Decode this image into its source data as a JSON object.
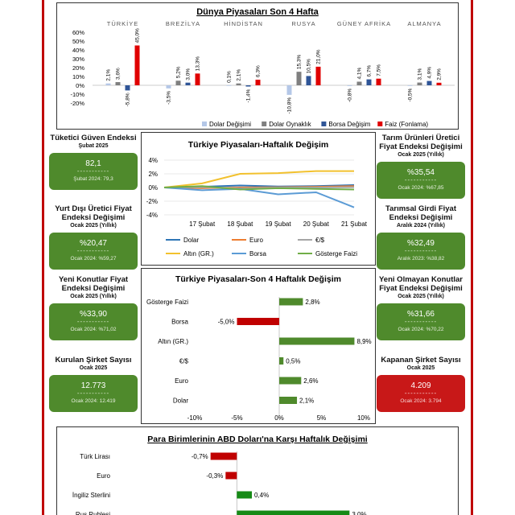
{
  "colors": {
    "frame": "#c00000",
    "kpi_green": "#4f8a2c",
    "kpi_red": "#c81818"
  },
  "kpis": [
    {
      "title": "Tüketici Güven Endeksi",
      "sub": "Şubat 2025",
      "value": "82,1",
      "dash": "-----------",
      "prev": "Şubat 2024: 79,3",
      "status": "green"
    },
    {
      "title": "Tarım Ürünleri Üretici Fiyat Endeksi Değişimi",
      "sub": "Ocak 2025 (Yıllık)",
      "value": "%35,54",
      "dash": "-----------",
      "prev": "Ocak 2024: %67,85",
      "status": "green"
    },
    {
      "title": "Yurt Dışı Üretici Fiyat Endeksi Değişimi",
      "sub": "Ocak 2025 (Yıllık)",
      "value": "%20,47",
      "dash": "-----------",
      "prev": "Ocak 2024: %59,27",
      "status": "green"
    },
    {
      "title": "Tarımsal Girdi Fiyat Endeksi Değişimi",
      "sub": "Aralık 2024 (Yıllık)",
      "value": "%32,49",
      "dash": "-----------",
      "prev": "Aralık 2023: %38,82",
      "status": "green"
    },
    {
      "title": "Yeni Konutlar Fiyat Endeksi Değişimi",
      "sub": "Ocak 2025 (Yıllık)",
      "value": "%33,90",
      "dash": "-----------",
      "prev": "Ocak 2024: %71,02",
      "status": "green"
    },
    {
      "title": "Yeni Olmayan Konutlar Fiyat Endeksi Değişimi",
      "sub": "Ocak 2025 (Yıllık)",
      "value": "%31,66",
      "dash": "-----------",
      "prev": "Ocak 2024: %70,22",
      "status": "green"
    },
    {
      "title": "Kurulan Şirket Sayısı",
      "sub": "Ocak 2025",
      "value": "12.773",
      "dash": "-----------",
      "prev": "Ocak 2024: 12.419",
      "status": "green"
    },
    {
      "title": "Kapanan Şirket Sayısı",
      "sub": "Ocak 2025",
      "value": "4.209",
      "dash": "-----------",
      "prev": "Ocak 2024: 3.794",
      "status": "red"
    }
  ],
  "chart_data": [
    {
      "type": "bar",
      "title": "Dünya Piyasaları Son 4 Hafta",
      "categories": [
        "TÜRKİYE",
        "BREZİLYA",
        "HİNDİSTAN",
        "RUSYA",
        "GÜNEY AFRİKA",
        "ALMANYA"
      ],
      "series": [
        {
          "name": "Dolar Değişimi",
          "color": "#b4c7e7",
          "values": [
            2.1,
            -3.5,
            0.1,
            -10.8,
            -0.8,
            -0.5
          ],
          "labels": [
            "2,1%",
            "-3,5%",
            "0,1%",
            "-10,8%",
            "-0,8%",
            "-0,5%"
          ]
        },
        {
          "name": "Dolar Oynaklık",
          "color": "#7f7f7f",
          "values": [
            3.6,
            5.2,
            2.1,
            15.3,
            4.1,
            3.1
          ],
          "labels": [
            "3,6%",
            "5,2%",
            "2,1%",
            "15,3%",
            "4,1%",
            "3,1%"
          ]
        },
        {
          "name": "Borsa Değişim",
          "color": "#2f5597",
          "values": [
            -5.8,
            3.0,
            -1.4,
            10.5,
            6.7,
            4.9
          ],
          "labels": [
            "-5,8%",
            "3,0%",
            "-1,4%",
            "10,5%",
            "6,7%",
            "4,9%"
          ]
        },
        {
          "name": "Faiz (Fonlama)",
          "color": "#e00000",
          "values": [
            45.0,
            13.3,
            6.3,
            21.0,
            7.5,
            2.9
          ],
          "labels": [
            "45,0%",
            "13,3%",
            "6,3%",
            "21,0%",
            "7,5%",
            "2,9%"
          ]
        }
      ],
      "yticks": [
        "60%",
        "50%",
        "40%",
        "30%",
        "20%",
        "10%",
        "0%",
        "-10%",
        "-20%"
      ],
      "ylim": [
        -20,
        60
      ],
      "legend": "bottom",
      "grid": false
    },
    {
      "type": "line",
      "title": "Türkiye Piyasaları-Haftalık Değişim",
      "x_labels": [
        "17 Şubat",
        "18 Şubat",
        "19 Şubat",
        "20 Şubat",
        "21 Şubat"
      ],
      "yticks": [
        "4%",
        "2%",
        "0%",
        "-2%",
        "-4%"
      ],
      "ylim": [
        -4,
        4
      ],
      "series": [
        {
          "name": "Dolar",
          "color": "#2e75b6",
          "values": [
            0.0,
            0.1,
            0.3,
            0.15,
            0.2,
            0.35
          ]
        },
        {
          "name": "Euro",
          "color": "#ed7d31",
          "values": [
            0.0,
            -0.1,
            0.0,
            0.05,
            0.1,
            0.2
          ]
        },
        {
          "name": "€/$",
          "color": "#a5a5a5",
          "values": [
            0.0,
            0.05,
            -0.15,
            0.0,
            0.0,
            0.05
          ]
        },
        {
          "name": "Altın (GR.)",
          "color": "#f2c12e",
          "values": [
            0.0,
            0.6,
            2.0,
            2.1,
            2.4,
            2.4
          ]
        },
        {
          "name": "Borsa",
          "color": "#5b9bd5",
          "values": [
            0.0,
            -0.4,
            -0.2,
            -1.0,
            -0.7,
            -2.9
          ]
        },
        {
          "name": "Gösterge Faizi",
          "color": "#70ad47",
          "values": [
            0.0,
            0.2,
            -0.3,
            -0.1,
            -0.2,
            -0.3
          ]
        }
      ],
      "legend": "bottom",
      "grid": true
    },
    {
      "type": "bar",
      "orientation": "horizontal",
      "title": "Türkiye Piyasaları-Son 4 Haftalık Değişim",
      "categories": [
        "Gösterge Faizi",
        "Borsa",
        "Altın (GR.)",
        "€/$",
        "Euro",
        "Dolar"
      ],
      "values": [
        2.8,
        -5.0,
        8.9,
        0.5,
        2.6,
        2.1
      ],
      "labels": [
        "2,8%",
        "-5,0%",
        "8,9%",
        "0,5%",
        "2,6%",
        "2,1%"
      ],
      "xticks": [
        "-10%",
        "-5%",
        "0%",
        "5%",
        "10%"
      ],
      "xlim": [
        -10,
        10
      ],
      "positive_color": "#4f8a2c",
      "negative_color": "#c00000"
    },
    {
      "type": "bar",
      "orientation": "horizontal",
      "title": "Para Birimlerinin ABD Doları'na Karşı Haftalık Değişimi",
      "categories": [
        "Türk Lirası",
        "Euro",
        "İngiliz Sterlini",
        "Rus Rublesi"
      ],
      "values": [
        -0.7,
        -0.3,
        0.4,
        3.0
      ],
      "labels": [
        "-0,7%",
        "-0,3%",
        "0,4%",
        "3,0%"
      ],
      "positive_color": "#168a16",
      "negative_color": "#c00000"
    }
  ]
}
